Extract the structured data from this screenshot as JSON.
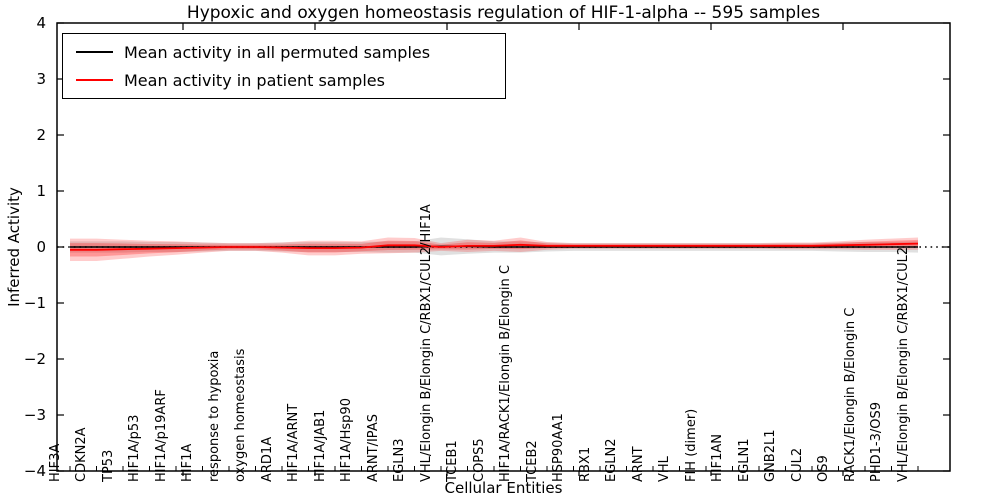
{
  "figure": {
    "title": "Hypoxic and oxygen homeostasis regulation of HIF-1-alpha -- 595 samples",
    "xlabel": "Cellular Entities",
    "ylabel": "Inferred Activity"
  },
  "legend": {
    "items": [
      {
        "label": "Mean activity in all permuted samples",
        "color": "#000000"
      },
      {
        "label": "Mean activity in patient samples",
        "color": "#ff0000"
      }
    ]
  },
  "colors": {
    "permuted_line": "#000000",
    "patient_line": "#ff0000",
    "permuted_band": "#000000",
    "patient_band": "#ff0000",
    "zero_line": "#000000"
  },
  "chart_data": {
    "type": "line",
    "title": "Hypoxic and oxygen homeostasis regulation of HIF-1-alpha -- 595 samples",
    "xlabel": "Cellular Entities",
    "ylabel": "Inferred Activity",
    "ylim": [
      -4,
      4
    ],
    "yticks": [
      4,
      3,
      2,
      1,
      0,
      -1,
      -2,
      -3,
      -4
    ],
    "grid": false,
    "zero_line_dotted": true,
    "legend_position": "upper left",
    "categories": [
      "HIF3A",
      "CDKN2A",
      "TP53",
      "HIF1A/p53",
      "HIF1A/p19ARF",
      "HIF1A",
      "response to hypoxia",
      "oxygen homeostasis",
      "ARD1A",
      "HIF1A/ARNT",
      "HIF1A/JAB1",
      "HIF1A/Hsp90",
      "ARNT/IPAS",
      "EGLN3",
      "VHL/Elongin B/Elongin C/RBX1/CUL2/HIF1A",
      "TCEB1",
      "COPS5",
      "HIF1A/RACK1/Elongin B/Elongin C",
      "TCEB2",
      "HSP90AA1",
      "RBX1",
      "EGLN2",
      "ARNT",
      "VHL",
      "FIH (dimer)",
      "HIF1AN",
      "EGLN1",
      "GNB2L1",
      "CUL2",
      "OS9",
      "RACK1/Elongin B/Elongin C",
      "PHD1-3/OS9",
      "VHL/Elongin B/Elongin C/RBX1/CUL2"
    ],
    "series": [
      {
        "name": "Mean activity in all permuted samples",
        "color": "#000000",
        "values": [
          0,
          0,
          0,
          0,
          0,
          0,
          0,
          0,
          0,
          0,
          0,
          0,
          0,
          0,
          0.01,
          0.01,
          0,
          0,
          0,
          0,
          0,
          0,
          0,
          0,
          0,
          0,
          0,
          0,
          0,
          0,
          0,
          0,
          0
        ],
        "band_std": [
          0.1,
          0.1,
          0.1,
          0.09,
          0.09,
          0.08,
          0.07,
          0.07,
          0.08,
          0.09,
          0.09,
          0.09,
          0.1,
          0.1,
          0.16,
          0.13,
          0.1,
          0.1,
          0.08,
          0.07,
          0.07,
          0.07,
          0.07,
          0.07,
          0.07,
          0.07,
          0.07,
          0.07,
          0.07,
          0.08,
          0.09,
          0.09,
          0.1
        ]
      },
      {
        "name": "Mean activity in patient samples",
        "color": "#ff0000",
        "values": [
          -0.05,
          -0.05,
          -0.04,
          -0.03,
          -0.02,
          -0.01,
          0,
          0,
          -0.01,
          -0.02,
          -0.02,
          -0.01,
          0.03,
          0.03,
          0,
          0.02,
          0.02,
          0.04,
          0.02,
          0.02,
          0.02,
          0.02,
          0.02,
          0.02,
          0.02,
          0.02,
          0.02,
          0.02,
          0.02,
          0.03,
          0.04,
          0.05,
          0.06
        ],
        "band_std": [
          0.2,
          0.2,
          0.17,
          0.14,
          0.12,
          0.09,
          0.07,
          0.07,
          0.09,
          0.13,
          0.13,
          0.11,
          0.14,
          0.13,
          0.07,
          0.11,
          0.09,
          0.13,
          0.07,
          0.05,
          0.05,
          0.05,
          0.05,
          0.05,
          0.05,
          0.05,
          0.05,
          0.06,
          0.06,
          0.07,
          0.09,
          0.1,
          0.11
        ]
      }
    ],
    "sample_count_in_title": 595
  }
}
